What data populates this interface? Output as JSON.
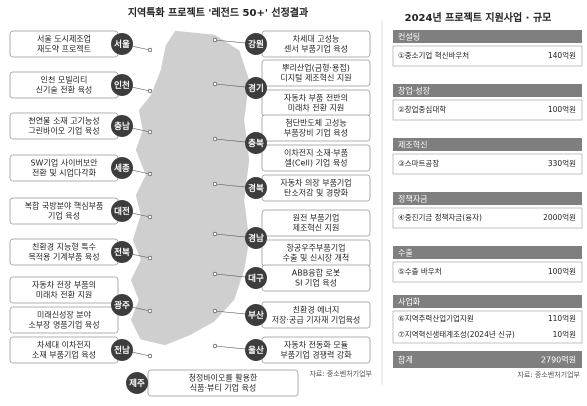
{
  "map": {
    "title": "지역특화 프로젝트 '레전드 50+' 선정결과",
    "left_regions": [
      {
        "region": "서울",
        "projects": [
          [
            "서울 도시제조업",
            "재도약 프로젝트"
          ]
        ]
      },
      {
        "region": "인천",
        "projects": [
          [
            "인천 모빌리티",
            "신기술 전환 육성"
          ]
        ]
      },
      {
        "region": "충남",
        "projects": [
          [
            "천연물 소재 고기능성",
            "그린바이오 기업 육성"
          ]
        ]
      },
      {
        "region": "세종",
        "projects": [
          [
            "SW기업 사이버보안",
            "전환 및 시업다각화"
          ]
        ]
      },
      {
        "region": "대전",
        "projects": [
          [
            "복합 국방분야 핵심부품",
            "기업 육성"
          ]
        ]
      },
      {
        "region": "전북",
        "projects": [
          [
            "친환경 지능형 특수",
            "목적용 기계부품 육성"
          ]
        ]
      },
      {
        "region": "광주",
        "projects": [
          [
            "자동차 전장 부품의",
            "미래차 전환 지원"
          ],
          [
            "미래신성장 분야",
            "소부장 명품기업 육성"
          ]
        ]
      },
      {
        "region": "전남",
        "projects": [
          [
            "차세대 이차전지",
            "소재 부품기업 육성"
          ]
        ]
      }
    ],
    "right_regions": [
      {
        "region": "강원",
        "projects": [
          [
            "차세대 고성능",
            "센서 부품기업 육성"
          ]
        ]
      },
      {
        "region": "경기",
        "projects": [
          [
            "뿌리산업(금형·용접)",
            "디지털 제조혁신 지원"
          ],
          [
            "자동차 부품 전반의",
            "미래차 전환 지원"
          ]
        ]
      },
      {
        "region": "충북",
        "projects": [
          [
            "첨단반도체 고성능",
            "부품장비 기업 육성"
          ],
          [
            "이차전지 소재·부품",
            "셀(Cell) 기업 육성"
          ]
        ]
      },
      {
        "region": "경북",
        "projects": [
          [
            "자동차 의장 부품기업",
            "탄소저감 및 경량화"
          ]
        ]
      },
      {
        "region": "경남",
        "projects": [
          [
            "원전 부품기업",
            "제조혁신 지원"
          ],
          [
            "항공우주부품기업",
            "수출 및 신시장 개척"
          ]
        ]
      },
      {
        "region": "대구",
        "projects": [
          [
            "ABB융합 로봇",
            "SI 기업 육성"
          ]
        ]
      },
      {
        "region": "부산",
        "projects": [
          [
            "친환경 에너지",
            "저장·공급 기자재 기업육성"
          ]
        ]
      },
      {
        "region": "울산",
        "projects": [
          [
            "자동차 전동화 모듈",
            "부품기업 경쟁력 강화"
          ]
        ]
      }
    ],
    "jeju": {
      "region": "제주",
      "projects": [
        [
          "청정바이오를 활용한",
          "식품·뷰티 기업 육성"
        ]
      ]
    },
    "source": "자료: 중소벤처기업부"
  },
  "table": {
    "title": "2024년 프로젝트 지원사업 · 규모",
    "sections": [
      {
        "name": "컨설팅",
        "rows": [
          {
            "program": "①중소기업 혁신바우처",
            "amount": "140억원"
          }
        ]
      },
      {
        "name": "창업·성장",
        "rows": [
          {
            "program": "②창업중심대학",
            "amount": "100억원"
          }
        ]
      },
      {
        "name": "제조혁신",
        "rows": [
          {
            "program": "③스마트공장",
            "amount": "330억원"
          }
        ]
      },
      {
        "name": "정책자금",
        "rows": [
          {
            "program": "④중진기금 정책자금(융자)",
            "amount": "2000억원"
          }
        ]
      },
      {
        "name": "수출",
        "rows": [
          {
            "program": "⑤수출 바우처",
            "amount": "100억원"
          }
        ]
      },
      {
        "name": "사업화",
        "rows": [
          {
            "program": "⑥지역주력산업기업지원",
            "amount": "110억원"
          },
          {
            "program": "⑦지역혁신생태계조성(2024년 신규)",
            "amount": "10억원"
          }
        ]
      }
    ],
    "total": {
      "label": "합계",
      "amount": "2790억원"
    },
    "source": "자료: 중소벤처기업부"
  }
}
